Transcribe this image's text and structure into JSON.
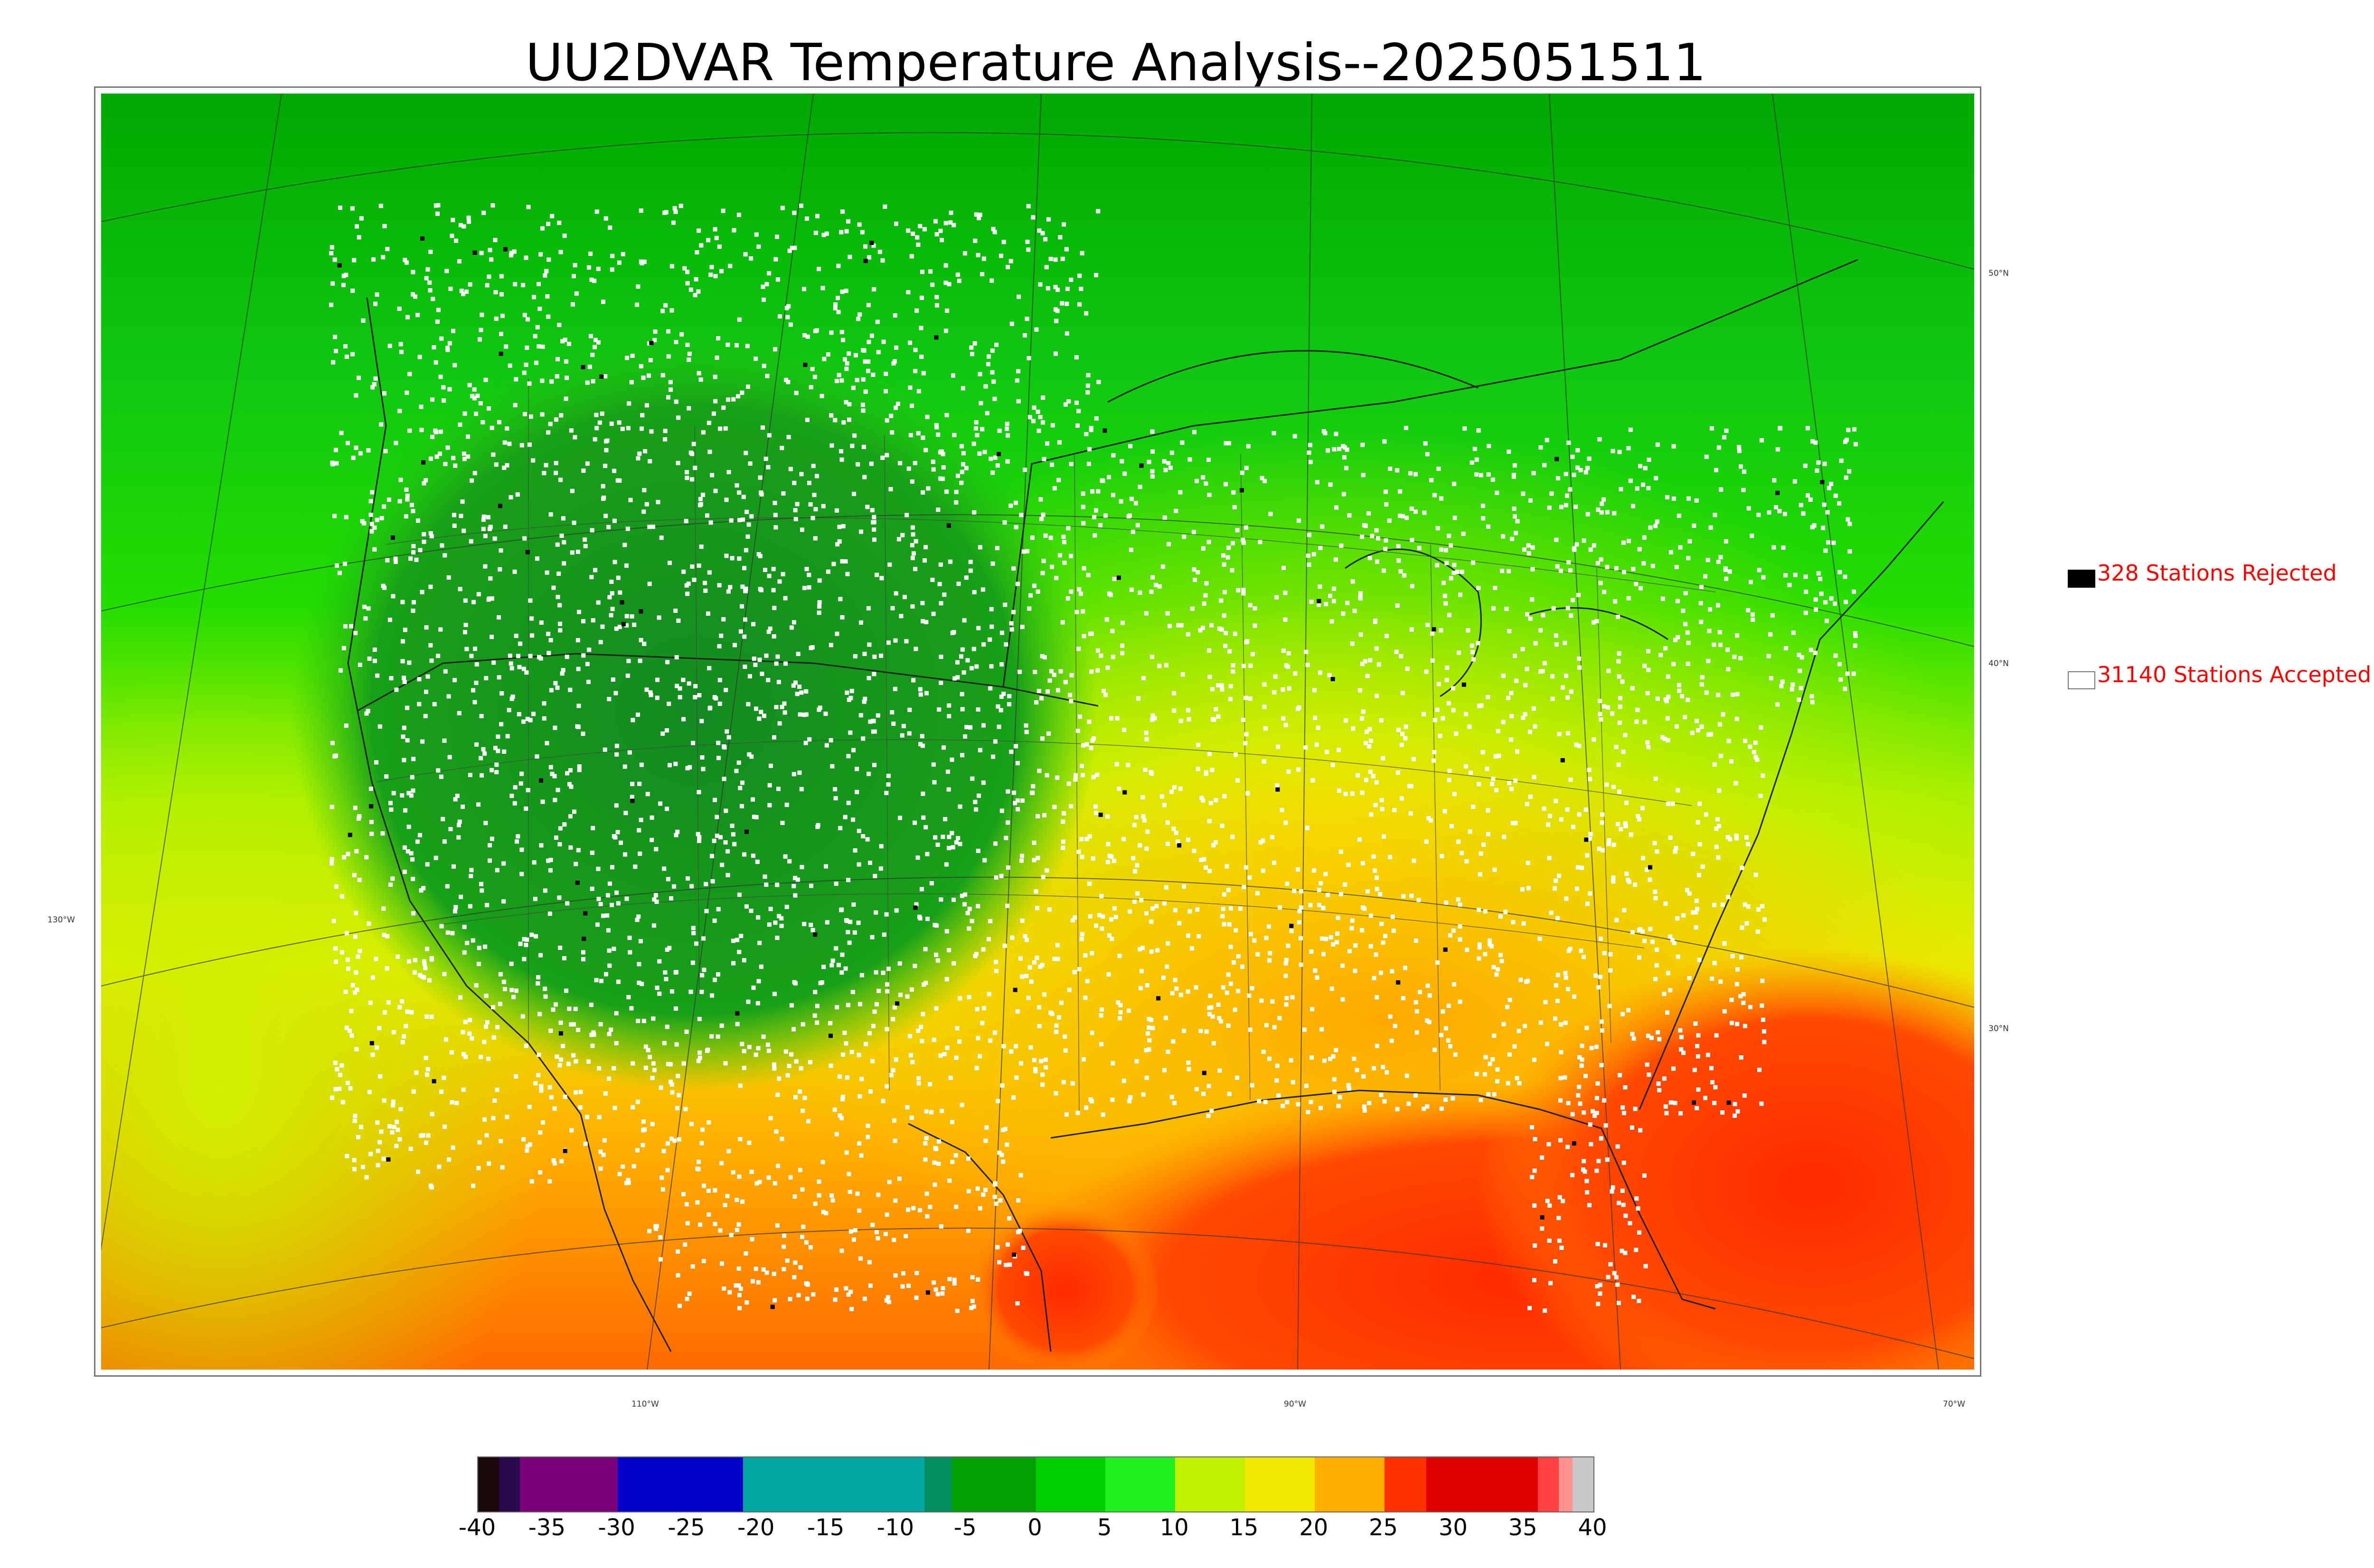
{
  "title": "UU2DVAR Temperature Analysis--2025051511",
  "map": {
    "lat_labels": [
      "50°N",
      "40°N",
      "30°N"
    ],
    "lon_labels": [
      "130°W",
      "110°W",
      "90°W",
      "70°W"
    ],
    "field_colors": {
      "cold_north": "#00a800",
      "green": "#22dd00",
      "mountain": "#158a15",
      "yellow_green": "#c8f000",
      "yellow": "#f0f000",
      "orange": "#ffb000",
      "red": "#ff3000"
    },
    "station_color_accepted": "#ffffff",
    "station_color_rejected": "#000000"
  },
  "legend": {
    "rejected": {
      "text": "328 Stations Rejected",
      "swatch_color": "#000000"
    },
    "accepted": {
      "text": "31140 Stations Accepted",
      "swatch_color": "#ffffff"
    },
    "text_color": "#ff0000"
  },
  "colorbar": {
    "min": -40,
    "max": 40,
    "ticks": [
      "-40",
      "-35",
      "-30",
      "-25",
      "-20",
      "-15",
      "-10",
      "-5",
      "0",
      "5",
      "10",
      "15",
      "20",
      "25",
      "30",
      "35",
      "40"
    ],
    "bands": [
      {
        "from": -40,
        "to": -38.5,
        "color": "#1a0a0a"
      },
      {
        "from": -38.5,
        "to": -37,
        "color": "#2a0a4a"
      },
      {
        "from": -37,
        "to": -30,
        "color": "#7a007a"
      },
      {
        "from": -30,
        "to": -21,
        "color": "#0000c8"
      },
      {
        "from": -21,
        "to": -8,
        "color": "#00a8a0"
      },
      {
        "from": -8,
        "to": -6,
        "color": "#009060"
      },
      {
        "from": -6,
        "to": 0,
        "color": "#00a000"
      },
      {
        "from": 0,
        "to": 5,
        "color": "#00d000"
      },
      {
        "from": 5,
        "to": 10,
        "color": "#20f020"
      },
      {
        "from": 10,
        "to": 15,
        "color": "#c0f000"
      },
      {
        "from": 15,
        "to": 20,
        "color": "#f0e800"
      },
      {
        "from": 20,
        "to": 25,
        "color": "#ffb000"
      },
      {
        "from": 25,
        "to": 28,
        "color": "#ff3000"
      },
      {
        "from": 28,
        "to": 36,
        "color": "#e00000"
      },
      {
        "from": 36,
        "to": 37.5,
        "color": "#ff4040"
      },
      {
        "from": 37.5,
        "to": 38.5,
        "color": "#ff9090"
      },
      {
        "from": 38.5,
        "to": 40,
        "color": "#c8c8c8"
      }
    ]
  }
}
